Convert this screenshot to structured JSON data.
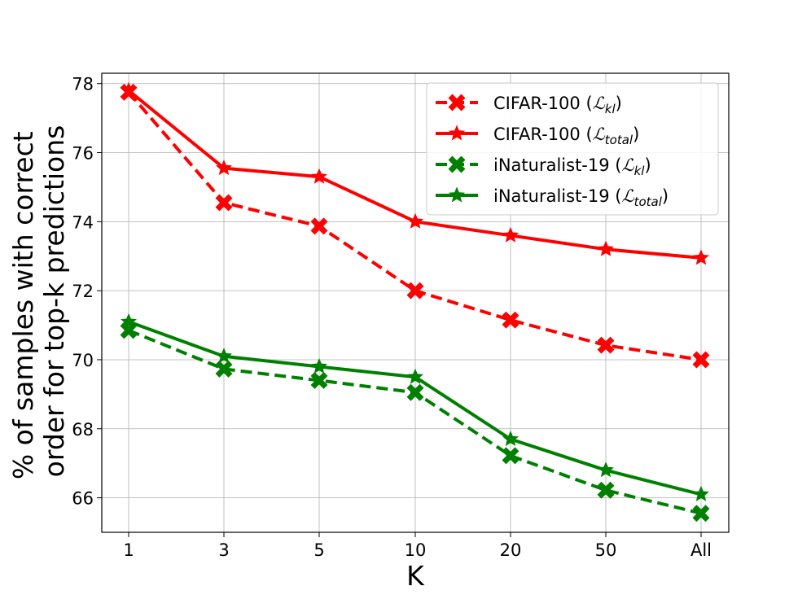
{
  "chart_data": {
    "type": "line",
    "title": "",
    "xlabel": "K",
    "ylabel_lines": [
      "% of samples with correct",
      "order for top-k predictions"
    ],
    "categories": [
      "1",
      "3",
      "5",
      "10",
      "20",
      "50",
      "All"
    ],
    "ylim": [
      65,
      78.3
    ],
    "yticks": [
      66,
      68,
      70,
      72,
      74,
      76,
      78
    ],
    "grid": true,
    "legend_position": "top-right",
    "series": [
      {
        "name": "CIFAR-100",
        "loss_symbol": "ℒ",
        "loss_subscript": "kl",
        "color": "#ff0000",
        "line_style": "dashed",
        "marker": "x",
        "values": [
          77.75,
          74.55,
          73.87,
          72.0,
          71.15,
          70.42,
          70.0
        ]
      },
      {
        "name": "CIFAR-100",
        "loss_symbol": "ℒ",
        "loss_subscript": "total",
        "color": "#ff0000",
        "line_style": "solid",
        "marker": "star",
        "values": [
          77.8,
          75.55,
          75.3,
          74.0,
          73.6,
          73.2,
          72.95
        ]
      },
      {
        "name": "iNaturalist-19",
        "loss_symbol": "ℒ",
        "loss_subscript": "kl",
        "color": "#008000",
        "line_style": "dashed",
        "marker": "x",
        "values": [
          70.85,
          69.73,
          69.4,
          69.05,
          67.22,
          66.22,
          65.55
        ]
      },
      {
        "name": "iNaturalist-19",
        "loss_symbol": "ℒ",
        "loss_subscript": "total",
        "color": "#008000",
        "line_style": "solid",
        "marker": "star",
        "values": [
          71.1,
          70.1,
          69.8,
          69.5,
          67.7,
          66.8,
          66.1
        ]
      }
    ]
  }
}
